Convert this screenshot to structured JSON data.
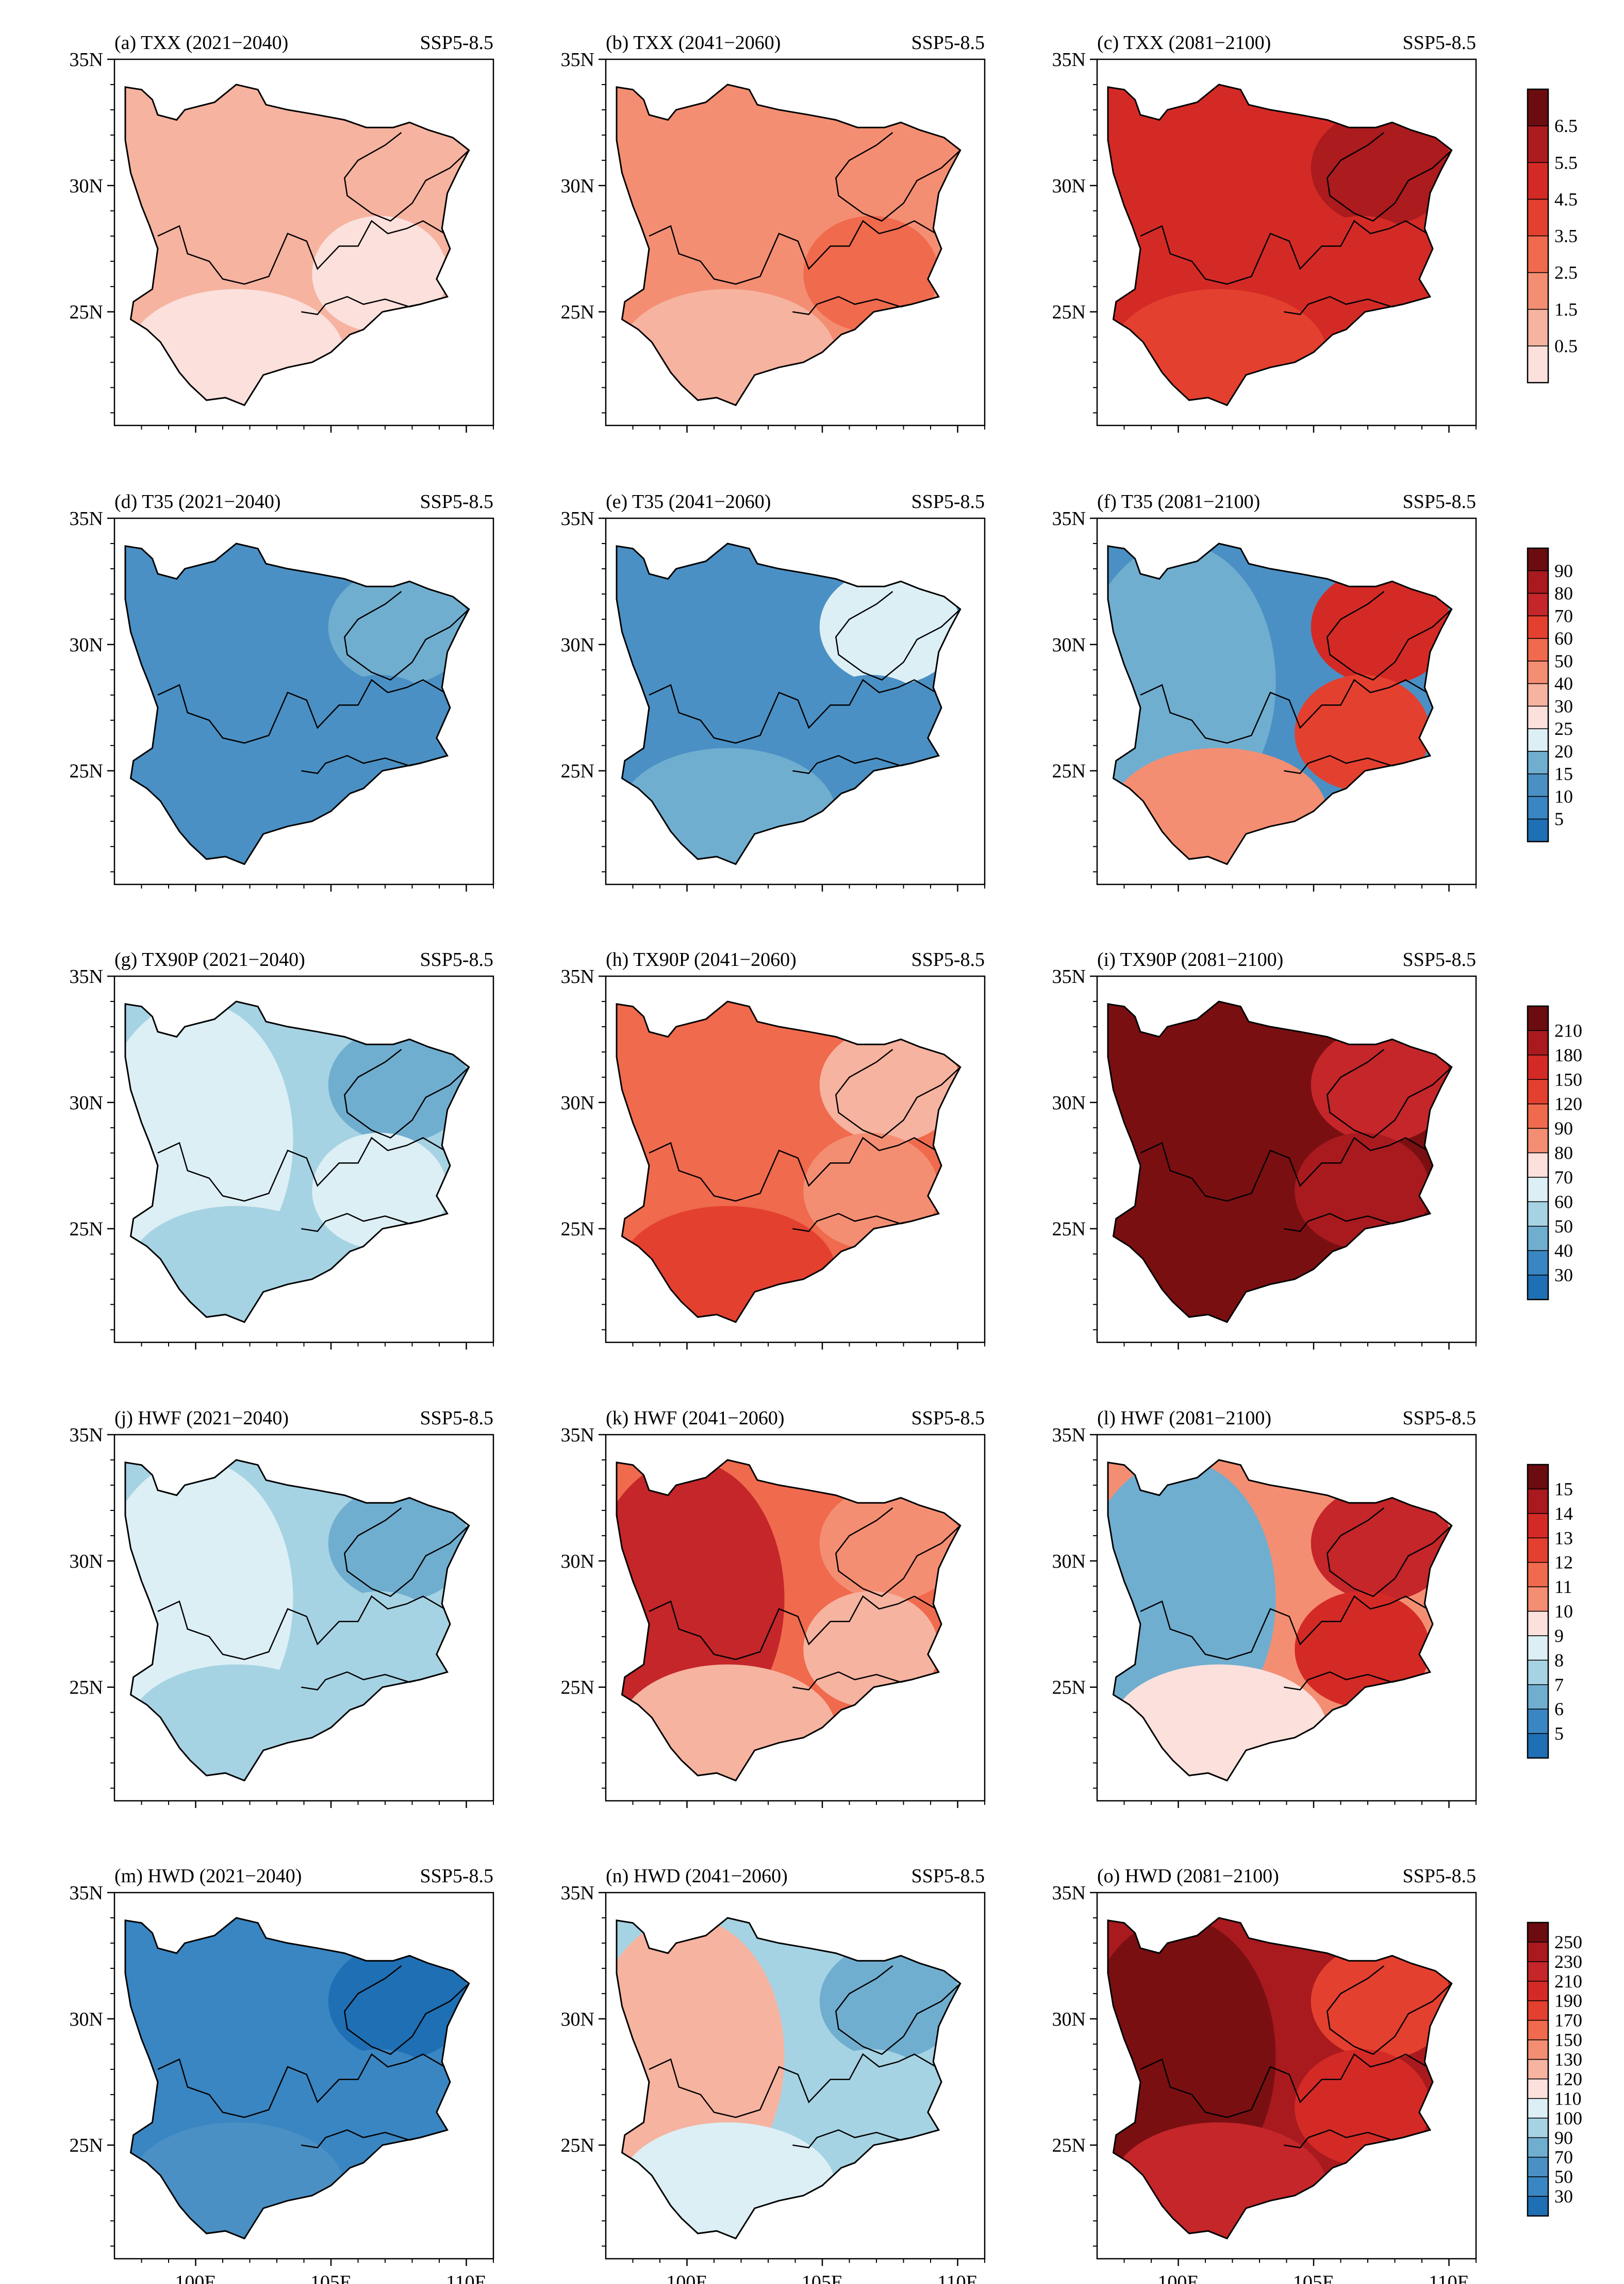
{
  "figure": {
    "scenario": "SSP5-8.5",
    "lat_labels": [
      "35N",
      "30N",
      "25N"
    ],
    "lon_labels": [
      "100E",
      "105E",
      "110E"
    ],
    "rows": [
      {
        "index": "TXX",
        "scale_type": "sequential-red",
        "colorbar_labels": [
          "6.5",
          "5.5",
          "4.5",
          "3.5",
          "2.5",
          "1.5",
          "0.5"
        ],
        "panels": [
          {
            "title": "(a) TXX (2021−2040)",
            "colors": [
              "#f6b3a0",
              "#f6b3a0",
              "#fbe0dc",
              "#f6b3a0",
              "#fbe0dc"
            ]
          },
          {
            "title": "(b) TXX (2041−2060)",
            "colors": [
              "#f48e73",
              "#f48e73",
              "#f6b3a0",
              "#f48e73",
              "#f06a4d"
            ]
          },
          {
            "title": "(c) TXX (2081−2100)",
            "colors": [
              "#d42a26",
              "#d42a26",
              "#e4402f",
              "#ac1b1e",
              "#d42a26"
            ]
          }
        ]
      },
      {
        "index": "T35",
        "scale_type": "diverging",
        "colorbar_labels": [
          "90",
          "80",
          "70",
          "60",
          "50",
          "40",
          "30",
          "25",
          "20",
          "15",
          "10",
          "5"
        ],
        "panels": [
          {
            "title": "(d) T35 (2021−2040)",
            "colors": [
              "#4a90c4",
              "#4a90c4",
              "#4a90c4",
              "#70aed0",
              "#4a90c4"
            ]
          },
          {
            "title": "(e) T35 (2041−2060)",
            "colors": [
              "#4a90c4",
              "#4a90c4",
              "#70aed0",
              "#dceff5",
              "#4a90c4"
            ]
          },
          {
            "title": "(f) T35 (2081−2100)",
            "colors": [
              "#4a90c4",
              "#70aed0",
              "#f48e73",
              "#d42a26",
              "#e4402f"
            ]
          }
        ]
      },
      {
        "index": "TX90P",
        "scale_type": "diverging",
        "colorbar_labels": [
          "210",
          "180",
          "150",
          "120",
          "90",
          "80",
          "70",
          "60",
          "50",
          "40",
          "30"
        ],
        "panels": [
          {
            "title": "(g) TX90P (2021−2040)",
            "colors": [
              "#a6d3e3",
              "#dceff5",
              "#a6d3e3",
              "#70aed0",
              "#dceff5"
            ]
          },
          {
            "title": "(h) TX90P (2041−2060)",
            "colors": [
              "#f06a4d",
              "#f06a4d",
              "#e4402f",
              "#f6b3a0",
              "#f48e73"
            ]
          },
          {
            "title": "(i) TX90P (2081−2100)",
            "colors": [
              "#7a0f12",
              "#7a0f12",
              "#7a0f12",
              "#c4262a",
              "#a81a1e"
            ]
          }
        ]
      },
      {
        "index": "HWF",
        "scale_type": "diverging",
        "colorbar_labels": [
          "15",
          "14",
          "13",
          "12",
          "11",
          "10",
          "9",
          "8",
          "7",
          "6",
          "5"
        ],
        "panels": [
          {
            "title": "(j) HWF (2021−2040)",
            "colors": [
              "#a6d3e3",
              "#dceff5",
              "#a6d3e3",
              "#70aed0",
              "#a6d3e3"
            ]
          },
          {
            "title": "(k) HWF (2041−2060)",
            "colors": [
              "#f06a4d",
              "#c4262a",
              "#f6b3a0",
              "#f48e73",
              "#f6b3a0"
            ]
          },
          {
            "title": "(l) HWF (2081−2100)",
            "colors": [
              "#f48e73",
              "#70aed0",
              "#fbe0dc",
              "#c4262a",
              "#d42a26"
            ]
          }
        ]
      },
      {
        "index": "HWD",
        "scale_type": "diverging",
        "colorbar_labels": [
          "250",
          "230",
          "210",
          "190",
          "170",
          "150",
          "130",
          "120",
          "110",
          "100",
          "90",
          "70",
          "50",
          "30"
        ],
        "panels": [
          {
            "title": "(m) HWD (2021−2040)",
            "colors": [
              "#3a86c2",
              "#3a86c2",
              "#4a90c4",
              "#1f6fb4",
              "#3a86c2"
            ]
          },
          {
            "title": "(n) HWD (2041−2060)",
            "colors": [
              "#a6d3e3",
              "#f6b3a0",
              "#dceff5",
              "#70aed0",
              "#a6d3e3"
            ]
          },
          {
            "title": "(o) HWD (2081−2100)",
            "colors": [
              "#a81a1e",
              "#7a0f12",
              "#c4262a",
              "#e4402f",
              "#d42a26"
            ]
          }
        ]
      }
    ]
  }
}
